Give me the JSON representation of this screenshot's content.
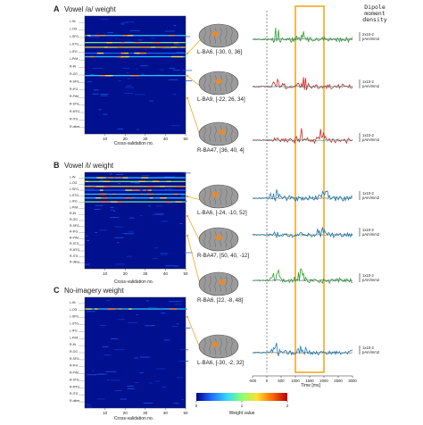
{
  "panels": [
    {
      "letter": "A",
      "title": "Vowel /a/ weight",
      "xlabel": "Cross-validation no.",
      "xticks": [
        "10",
        "20",
        "30",
        "40",
        "50"
      ],
      "row_labels": [
        "L-IN",
        "L-OG",
        "L-SFG",
        "L-STG",
        "L-IFG",
        "L-PrM",
        "R-IN",
        "R-OG",
        "R-SFG",
        "R-IFG",
        "R-PrM",
        "R-STG",
        "R-MTG",
        "R-ITG",
        "R-other"
      ],
      "bright_rows": [
        0.16,
        0.22,
        0.26,
        0.31,
        0.34,
        0.5
      ]
    },
    {
      "letter": "B",
      "title": "Vowel /i/ weight",
      "xlabel": "Cross-validation no.",
      "xticks": [
        "10",
        "20",
        "30",
        "40",
        "50"
      ],
      "row_labels": [
        "L-IN",
        "L-OG",
        "L-SFG",
        "L-STG",
        "L-IFG",
        "L-PrM",
        "R-IN",
        "R-OG",
        "R-SFG",
        "R-IFG",
        "R-PrM",
        "R-STG",
        "R-MTG",
        "R-ITG",
        "R-other"
      ],
      "bright_rows": [
        0.05,
        0.09,
        0.14,
        0.18,
        0.22,
        0.26,
        0.3
      ]
    },
    {
      "letter": "C",
      "title": "No-imagery weight",
      "xlabel": "Cross-validation no.",
      "xticks": [
        "10",
        "20",
        "30",
        "40",
        "50"
      ],
      "row_labels": [
        "L-IN",
        "L-OG",
        "L-SFG",
        "L-STG",
        "L-IFG",
        "L-PrM",
        "R-IN",
        "R-OG",
        "R-SFG",
        "R-IFG",
        "R-PrM",
        "R-STG",
        "R-MTG",
        "R-ITG",
        "R-other"
      ],
      "bright_rows": [
        0.1
      ]
    }
  ],
  "colorbar": {
    "label": "Weight value",
    "ticks": [
      "0",
      "1",
      "2"
    ],
    "colors": [
      "#00008b",
      "#1e6fff",
      "#33d6ff",
      "#8bff73",
      "#ffe033",
      "#ff6a00",
      "#b50000"
    ]
  },
  "brain_labels": [
    "L-BA6, [-30, 0, 36]",
    "L-BA9, [-22, 26, 34]",
    "R-BA47, [36, 40, 4]",
    "L-BA6, [-24, -10, 52]",
    "R-BA47, [50, 40, -12]",
    "R-BA6, [22, -8, 48]",
    "L-BA6, [-30, -2, 32]"
  ],
  "dipole_header": [
    "Dipole",
    "moment",
    "density"
  ],
  "scale_labels": [
    "2x10-2 pAm/mm2",
    "1x10-2 pAm/mm2",
    "1x10-2 pAm/mm2",
    "1x10-2 pAm/mm2",
    "1x10-2 pAm/mm2",
    "1x10-2 pAm/mm2",
    "1x10-2 pAm/mm2"
  ],
  "time_axis": {
    "label": "Time [ms]",
    "ticks": [
      "-500",
      "0",
      "500",
      "1000",
      "1500",
      "2000",
      "2500",
      "3000"
    ]
  },
  "chart_data": {
    "type": "line",
    "x": [
      -500,
      0,
      500,
      1000,
      1500,
      2000,
      2500,
      3000
    ],
    "xlabel": "Time [ms]",
    "highlight_window_ms": [
      1000,
      2000
    ],
    "series_colors": [
      "#d62728",
      "#2ca02c",
      "#1f77b4"
    ],
    "traces": [
      {
        "label": "L-BA6, [-30, 0, 36]",
        "active_color": "#2ca02c",
        "peak_ms": [
          350,
          1200
        ]
      },
      {
        "label": "L-BA9, [-22, 26, 34]",
        "active_color": "#d62728",
        "peak_ms": [
          400,
          1300
        ]
      },
      {
        "label": "R-BA47, [36, 40, 4]",
        "active_color": "#d62728",
        "peak_ms": [
          1200,
          1900
        ]
      },
      {
        "label": "L-BA6, [-24, -10, 52]",
        "active_color": "#1f77b4",
        "peak_ms": [
          300,
          2000
        ]
      },
      {
        "label": "R-BA47, [50, 40, -12]",
        "active_color": "#1f77b4",
        "peak_ms": [
          1900
        ]
      },
      {
        "label": "R-BA6, [22, -8, 48]",
        "active_color": "#2ca02c",
        "peak_ms": [
          350,
          1200
        ]
      },
      {
        "label": "L-BA6, [-30, -2, 32]",
        "active_color": "#1f77b4",
        "peak_ms": [
          350,
          1250
        ]
      }
    ]
  }
}
